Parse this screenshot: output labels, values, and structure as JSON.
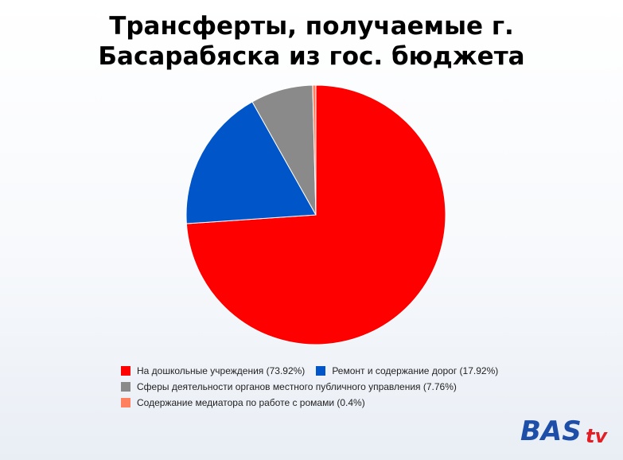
{
  "chart_data": {
    "type": "pie",
    "title_lines": [
      "Трансферты, получаемые г.",
      "Басарабяска из гос. бюджета"
    ],
    "slices": [
      {
        "label": "На дошкольные учреждения (73.92%)",
        "value": 73.92,
        "color": "#ff0000"
      },
      {
        "label": "Ремонт и содержание дорог (17.92%)",
        "value": 17.92,
        "color": "#0055c8"
      },
      {
        "label": "Сферы деятельности органов местного публичного управления (7.76%)",
        "value": 7.76,
        "color": "#8a8a8a"
      },
      {
        "label": "Содержание медиатора по работе с ромами (0.4%)",
        "value": 0.4,
        "color": "#ff7f5f"
      }
    ],
    "legend_position": "bottom"
  },
  "logo": {
    "text_main": "BAS",
    "text_suffix": "tv",
    "color_main": "#1e4fa8",
    "color_suffix": "#e31e24"
  }
}
